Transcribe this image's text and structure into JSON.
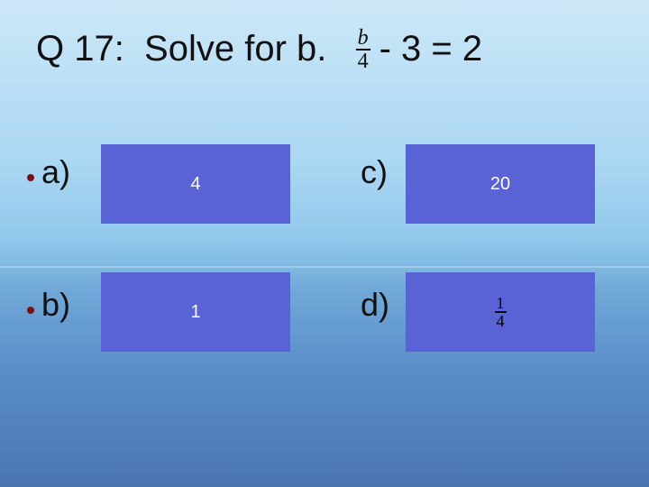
{
  "title": {
    "prefix": "Q 17:  Solve for b.  ",
    "fraction": {
      "num": "b",
      "den": "4"
    },
    "suffix": " - 3 = 2"
  },
  "options": {
    "a": {
      "label": "a)",
      "value": "4"
    },
    "b": {
      "label": "b)",
      "value": "1"
    },
    "c": {
      "label": "c)",
      "value": "20"
    },
    "d": {
      "label": "d)",
      "fraction": {
        "num": "1",
        "den": "4"
      }
    }
  },
  "colors": {
    "answer_box_bg": "#5a63d6",
    "bullet": "#7a1010",
    "text_dark": "#111111",
    "text_light": "#ffffff"
  }
}
